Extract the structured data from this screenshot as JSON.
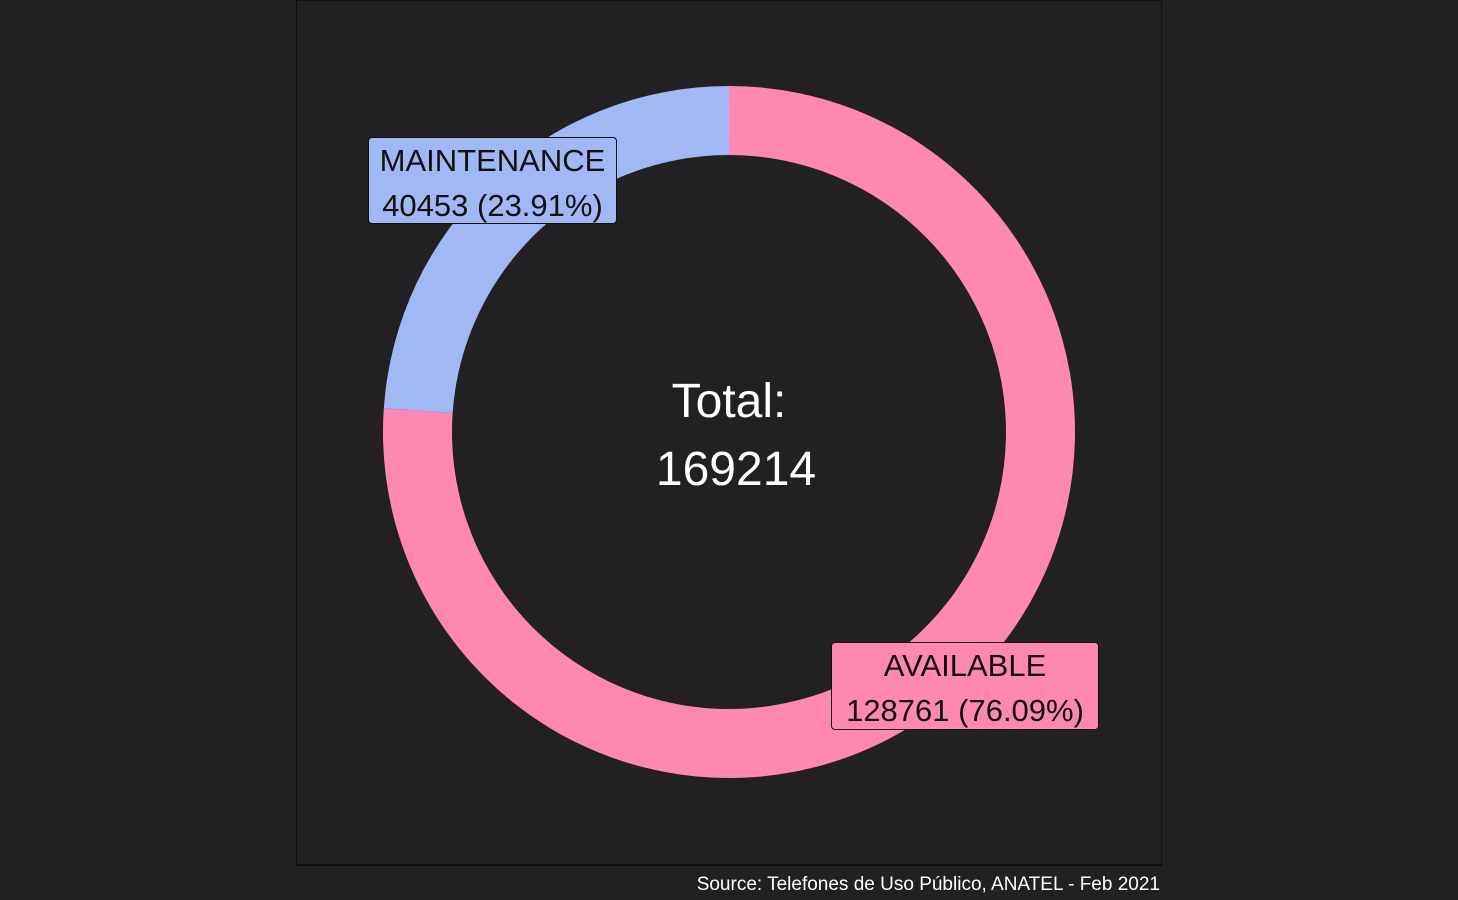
{
  "chart_data": {
    "type": "pie",
    "variant": "donut",
    "title": "",
    "center_label": {
      "line1": "Total:",
      "line2": "169214"
    },
    "total": 169214,
    "slices": [
      {
        "name": "AVAILABLE",
        "value": 128761,
        "percent": 76.09,
        "color": "#ff88b2",
        "label_line1": "AVAILABLE",
        "label_line2": "128761 (76.09%)"
      },
      {
        "name": "MAINTENANCE",
        "value": 40453,
        "percent": 23.91,
        "color": "#a0b8f4",
        "label_line1": "MAINTENANCE",
        "label_line2": "40453 (23.91%)"
      }
    ],
    "caption": "Source: Telefones de Uso Público, ANATEL - Feb 2021",
    "legend": "none",
    "grid": false
  },
  "colors": {
    "background": "#222023",
    "available": "#ff88b2",
    "maintenance": "#a0b8f4",
    "text_light": "#ffffff",
    "text_dark": "#111111"
  }
}
